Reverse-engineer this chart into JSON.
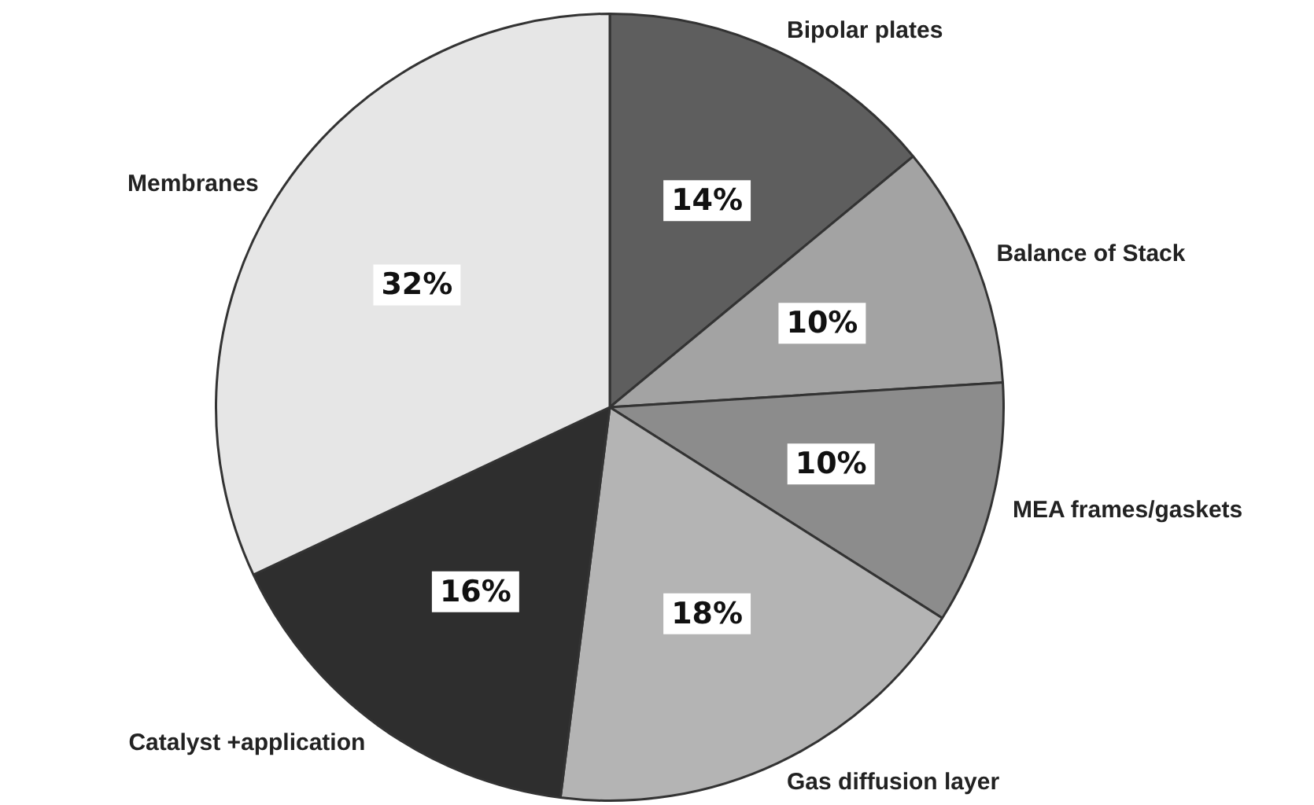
{
  "chart_data": {
    "type": "pie",
    "categories": [
      "Bipolar plates",
      "Balance of Stack",
      "MEA frames/gaskets",
      "Gas diffusion layer",
      "Catalyst +application",
      "Membranes"
    ],
    "values": [
      14,
      10,
      10,
      18,
      16,
      32
    ],
    "value_labels": [
      "14%",
      "10%",
      "10%",
      "18%",
      "16%",
      "32%"
    ],
    "colors": [
      "#5e5e5e",
      "#a3a3a3",
      "#8c8c8c",
      "#b4b4b4",
      "#2e2e2e",
      "#e6e6e6"
    ],
    "legend": false
  }
}
